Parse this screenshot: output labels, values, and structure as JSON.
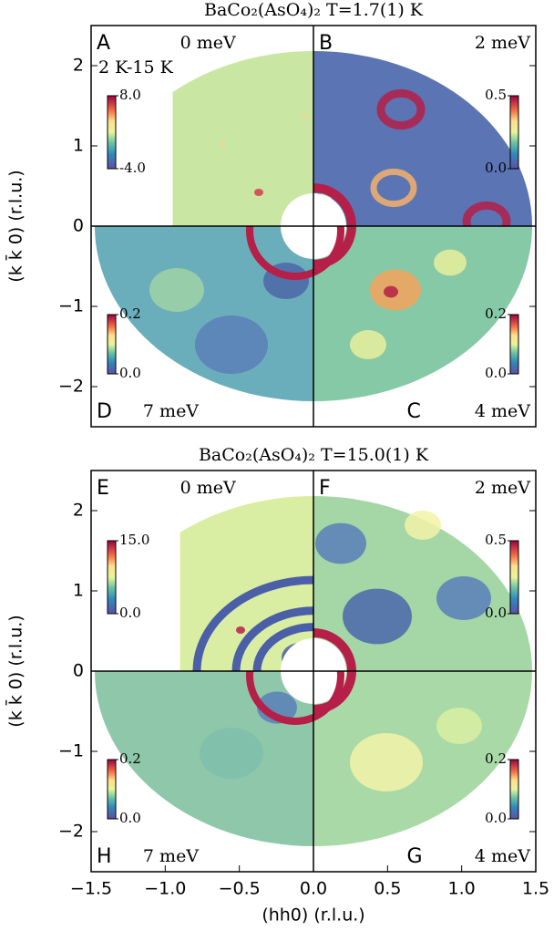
{
  "chart_data": [
    {
      "type": "heatmap",
      "title": "BaCo₂(AsO₄)₂ T=1.7(1) K",
      "ylabel": "(k k̄ 0) (r.l.u.)",
      "xlim": [
        -1.5,
        1.5
      ],
      "ylim": [
        -2.5,
        2.5
      ],
      "yticks": [
        {
          "value": -2,
          "label": "−2"
        },
        {
          "value": -1,
          "label": "−1"
        },
        0,
        1,
        2
      ],
      "panels": [
        {
          "label": "A",
          "energy": "0 meV",
          "note": "2 K-15 K",
          "clim": [
            -4,
            8
          ],
          "cticks": [
            {
              "value": 8,
              "label": "8.0"
            },
            {
              "value": -4,
              "label": "-4.0"
            }
          ]
        },
        {
          "label": "B",
          "energy": "2 meV",
          "clim": [
            0,
            0.5
          ],
          "cticks": [
            0.5,
            {
              "value": 0,
              "label": "0.0"
            }
          ]
        },
        {
          "label": "C",
          "energy": "4 meV",
          "clim": [
            0,
            0.2
          ],
          "cticks": [
            0.2,
            {
              "value": 0,
              "label": "0.0"
            }
          ]
        },
        {
          "label": "D",
          "energy": "7 meV",
          "clim": [
            0,
            0.2
          ],
          "cticks": [
            0.2,
            {
              "value": 0,
              "label": "0.0"
            }
          ]
        }
      ]
    },
    {
      "type": "heatmap",
      "title": "BaCo₂(AsO₄)₂ T=15.0(1) K",
      "ylabel": "(k k̄ 0) (r.l.u.)",
      "xlabel": "(hh0) (r.l.u.)",
      "xlim": [
        -1.5,
        1.5
      ],
      "ylim": [
        -2.5,
        2.5
      ],
      "xticks": [
        {
          "value": -1.5,
          "label": "−1.5"
        },
        {
          "value": -1,
          "label": "−1.0"
        },
        {
          "value": -0.5,
          "label": "−0.5"
        },
        {
          "value": 0,
          "label": "0.0"
        },
        0.5,
        {
          "value": 1,
          "label": "1.0"
        },
        1.5
      ],
      "yticks": [
        {
          "value": -2,
          "label": "−2"
        },
        {
          "value": -1,
          "label": "−1"
        },
        0,
        1,
        2
      ],
      "panels": [
        {
          "label": "E",
          "energy": "0 meV",
          "clim": [
            0,
            15
          ],
          "cticks": [
            {
              "value": 15,
              "label": "15.0"
            },
            {
              "value": 0,
              "label": "0.0"
            }
          ]
        },
        {
          "label": "F",
          "energy": "2 meV",
          "clim": [
            0,
            0.5
          ],
          "cticks": [
            0.5,
            {
              "value": 0,
              "label": "0.0"
            }
          ]
        },
        {
          "label": "G",
          "energy": "4 meV",
          "clim": [
            0,
            0.2
          ],
          "cticks": [
            0.2,
            {
              "value": 0,
              "label": "0.0"
            }
          ]
        },
        {
          "label": "H",
          "energy": "7 meV",
          "clim": [
            0,
            0.2
          ],
          "cticks": [
            0.2,
            {
              "value": 0,
              "label": "0.0"
            }
          ]
        }
      ]
    }
  ]
}
